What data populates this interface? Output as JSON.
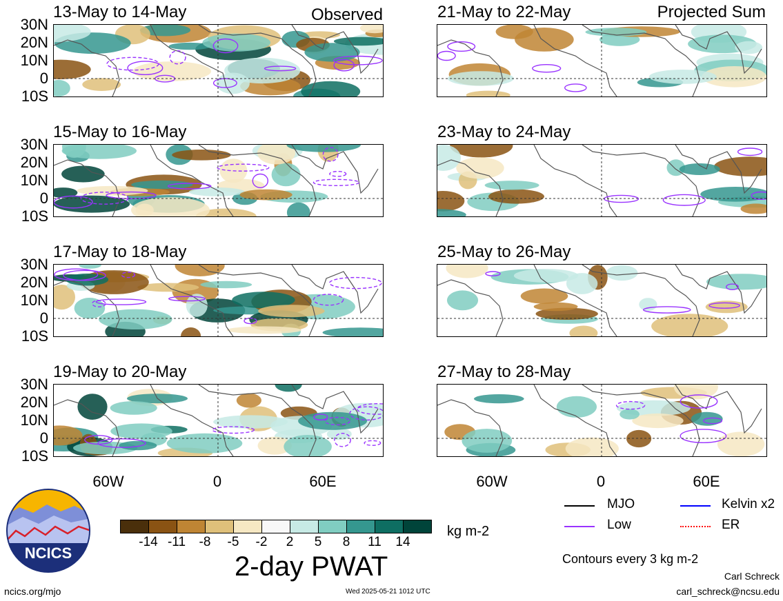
{
  "columns": {
    "left_label": "Observed",
    "right_label": "Projected Sum"
  },
  "panels_left": [
    {
      "title": "13-May to 14-May"
    },
    {
      "title": "15-May to 16-May"
    },
    {
      "title": "17-May to 18-May"
    },
    {
      "title": "19-May to 20-May"
    }
  ],
  "panels_right": [
    {
      "title": "21-May to 22-May"
    },
    {
      "title": "23-May to 24-May"
    },
    {
      "title": "25-May to 26-May"
    },
    {
      "title": "27-May to 28-May"
    }
  ],
  "lat_labels": [
    "30N",
    "20N",
    "10N",
    "0",
    "10S"
  ],
  "lon_labels": [
    "60W",
    "0",
    "60E"
  ],
  "colorbar": {
    "colors": [
      "#4a2f0b",
      "#8a5313",
      "#bf8534",
      "#dfc07a",
      "#f6e8c3",
      "#f8f8f8",
      "#c7eae5",
      "#80cdc1",
      "#35978f",
      "#0e6e62",
      "#00443a"
    ],
    "ticks": [
      "-14",
      "-11",
      "-8",
      "-5",
      "-2",
      "2",
      "5",
      "8",
      "11",
      "14"
    ],
    "units": "kg m-2",
    "title": "2-day PWAT"
  },
  "legend": {
    "items": [
      {
        "label": "MJO",
        "color": "#000000"
      },
      {
        "label": "Kelvin x2",
        "color": "#0000ff"
      },
      {
        "label": "Low",
        "color": "#9932ff"
      },
      {
        "label": "ER",
        "color": "#ff0000"
      }
    ],
    "contours_note": "Contours every 3 kg m-2"
  },
  "logo": {
    "text": "NCICS"
  },
  "footer": {
    "url": "ncics.org/mjo",
    "timestamp": "Wed 2025-05-21 1012 UTC",
    "author": "Carl Schreck",
    "email": "carl_schreck@ncsu.edu"
  }
}
